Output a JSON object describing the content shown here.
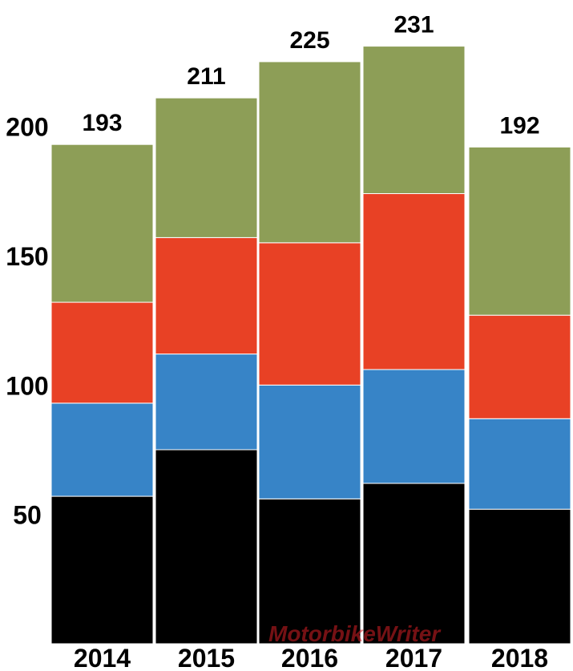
{
  "chart_data": {
    "type": "bar",
    "stacked": true,
    "title": "",
    "xlabel": "",
    "ylabel": "",
    "categories": [
      "2014",
      "2015",
      "2016",
      "2017",
      "2018"
    ],
    "series": [
      {
        "color": "#000000",
        "values": [
          57,
          75,
          56,
          62,
          52
        ]
      },
      {
        "color": "#3784c7",
        "values": [
          36,
          37,
          44,
          44,
          35
        ]
      },
      {
        "color": "#e84125",
        "values": [
          39,
          45,
          55,
          68,
          40
        ]
      },
      {
        "color": "#8d9e57",
        "values": [
          61,
          54,
          70,
          57,
          65
        ]
      }
    ],
    "totals": [
      "193",
      "211",
      "225",
      "231",
      "192"
    ],
    "yticks": [
      "50",
      "100",
      "150",
      "200"
    ],
    "ylim": [
      0,
      238
    ],
    "grid": false,
    "legend": "none"
  },
  "watermark": {
    "text": "MotorbikeWriter"
  }
}
